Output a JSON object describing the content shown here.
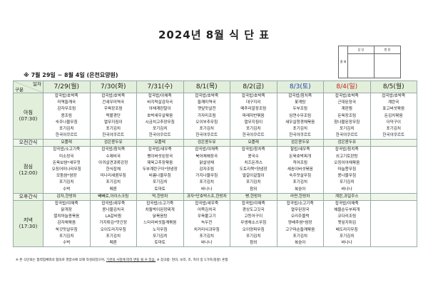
{
  "title": "2024년 8월 식 단 표",
  "approval": {
    "side_label": "결 재",
    "col1": "담 당",
    "col2": "원 장"
  },
  "subtitle": "※ 7월 29일 ~ 8월 4일 (은천요양원)",
  "corner": {
    "top": "일자",
    "bottom": "구분"
  },
  "colors": {
    "header_bg": "#e2efda",
    "saturday": "#1f3fb0",
    "sunday": "#c0262c"
  },
  "days": [
    "7/29(월)",
    "7/30(화)",
    "7/31(수)",
    "8/1(목)",
    "8/2(금)",
    "8/3(토)",
    "8/4(일)",
    "8/5(월)"
  ],
  "meals": [
    {
      "label": "아침",
      "time": "(07:30)",
      "type": "meal",
      "cells": [
        [
          "잡곡밥/호박죽",
          "미역들깨국",
          "감자무조림",
          "콩조림",
          "숙주나물무침",
          "포기김치",
          "한국야쿠르트"
        ],
        [
          "잡곡밥/호박죽",
          "건새우미역국",
          "우육장조림",
          "떡볼경단",
          "열무지짐이",
          "포기김치",
          "한국야쿠르트"
        ],
        [
          "잡곡밥/야채죽",
          "바지락살감자국",
          "야채계란말이",
          "호박새우살볶음",
          "시금치고추장무침",
          "포기김치",
          "한국야쿠르트"
        ],
        [
          "잡곡밥/호박죽",
          "들깨미역국",
          "깻잎맛살전",
          "가자미조림",
          "오이부추무침",
          "포기김치",
          "한국야쿠르트"
        ],
        [
          "잡곡밥/호박죽",
          "대구지리",
          "메추리알장조림",
          "파래자반볶음",
          "열무지짐이",
          "포기김치",
          "한국야쿠르트"
        ],
        [
          "잡곡밥/참치죽",
          "꽃게탕",
          "두부조림",
          "임연수무조림",
          "새우살청경채볶음",
          "포기김치",
          "한국야쿠르트"
        ],
        [
          "잡곡밥/호박죽",
          "근대된장국",
          "계란찜",
          "돈육장조림",
          "참나물된장무침",
          "포기김치",
          "한국야쿠르트"
        ],
        [
          "잡곡밥/호박죽",
          "계란국",
          "표고버섯볶음",
          "돈김치볶음",
          "더덕구이",
          "포기김치",
          "한국야쿠르트"
        ]
      ]
    },
    {
      "label": "오전간식",
      "time": "",
      "type": "snack",
      "cells": [
        [
          "요플레"
        ],
        [
          "검은콩두유"
        ],
        [
          "요플레"
        ],
        [
          "검은콩두유"
        ],
        [
          "요플레"
        ],
        [
          "검은콩두유"
        ],
        [
          "검은콩두유"
        ],
        [
          ""
        ]
      ]
    },
    {
      "label": "점심",
      "time": "(12:00)",
      "type": "meal",
      "cells": [
        [
          "잡곡밥/소고기죽",
          "미소장국",
          "돈육보쌈*새우젓",
          "오징어미나리무침",
          "모둠쌈*쌈장",
          "포기김치",
          "수박"
        ],
        [
          "잡곡밥/참치죽",
          "수제비국",
          "아귀살견과류강정",
          "한식잡채",
          "미나리새콤무침",
          "포기김치",
          "메론"
        ],
        [
          "잡곡밥/새우죽",
          "팽이버섯된장국",
          "제육고추장볶음",
          "두부계란구이*양념장",
          "비름나물무침",
          "포기김치",
          "토마토"
        ],
        [
          "잡곡밥/야채죽",
          "북어채해장국",
          "닭살냉채",
          "감자조림",
          "가지나물무침",
          "포기김치",
          "바나나"
        ],
        [
          "잡곡밥/참치죽",
          "콩국수",
          "치즈돈까스",
          "도토리묵*양념장",
          "얼갈이겉절이",
          "포기김치",
          "참외"
        ],
        [
          "찰밥/새우죽",
          "돈육호박찌개",
          "적어조림",
          "새송이버섯볶음",
          "숙주맛살무침",
          "포기김치",
          "복숭아"
        ],
        [
          "잡곡밥/참치죽",
          "쇠고기토란탕",
          "오징어야채볶음",
          "마늘쫑무침",
          "콩나물무침",
          "포기김치",
          "바나나"
        ],
        [
          "",
          "",
          "",
          "",
          "",
          "",
          ""
        ]
      ]
    },
    {
      "label": "오후간식",
      "time": "",
      "type": "snack",
      "cells": [
        [
          "감자,한방차"
        ],
        [
          "빼빼로,아이스크림"
        ],
        [
          "떡,한방차"
        ],
        [
          "과자*단호박스프,한방차"
        ],
        [
          "빵,한방차"
        ],
        [
          "라면,한방차"
        ],
        [
          "계란,과일주스"
        ],
        [
          ""
        ]
      ]
    },
    {
      "label": "저녁",
      "time": "(17:30)",
      "type": "meal",
      "cells": [
        [
          "잡곡밥/야채죽",
          "닭개장",
          "멸치마늘종볶음",
          "감자채볶음",
          "쑥갓맛살무침",
          "포기김치",
          "수박"
        ],
        [
          "잡곡밥/새우죽",
          "콩나물김치국",
          "LA갈비찜",
          "가지튀김*맛간장",
          "오이도라지무침",
          "포기김치",
          "메론"
        ],
        [
          "잡곡밥/소고기죽",
          "차돌박이된장찌개",
          "닭볶음탕",
          "느타리버섯들깨볶음",
          "노각무침",
          "포기김치",
          "토마토"
        ],
        [
          "잡곡밥/새우죽",
          "어묵김치국",
          "우육불고기",
          "녹두전",
          "치커리사과무침",
          "포기김치",
          "바나나"
        ],
        [
          "잡곡밥/야채죽",
          "경상도고깃국",
          "고등어구이",
          "무생채소스무침",
          "오이양파무침",
          "포기김치",
          "참외"
        ],
        [
          "잡곡밥/소고기죽",
          "열무된장국",
          "오리주물럭",
          "양배추쌈*쌈장",
          "고구마순들깨볶음",
          "포기김치",
          "복숭아"
        ],
        [
          "잡곡밥/야채죽",
          "해물순두부찌개",
          "코다리조림",
          "깻잎지튀김",
          "배도라지무침",
          "포기김치",
          "바나나"
        ],
        [
          "",
          "",
          "",
          "",
          "",
          "",
          ""
        ]
      ]
    }
  ],
  "note": {
    "part1": "※ 본 식단표는 협력업체와의 협의로 영양사에 의해 작성되었으며, ",
    "underlined": "기관의 사정에 따라 변동 될 수 있음.",
    "part2": " ※ 잡곡밥: 현미, 보리, 조, 흑미 중 1가지(정량) 혼합"
  }
}
